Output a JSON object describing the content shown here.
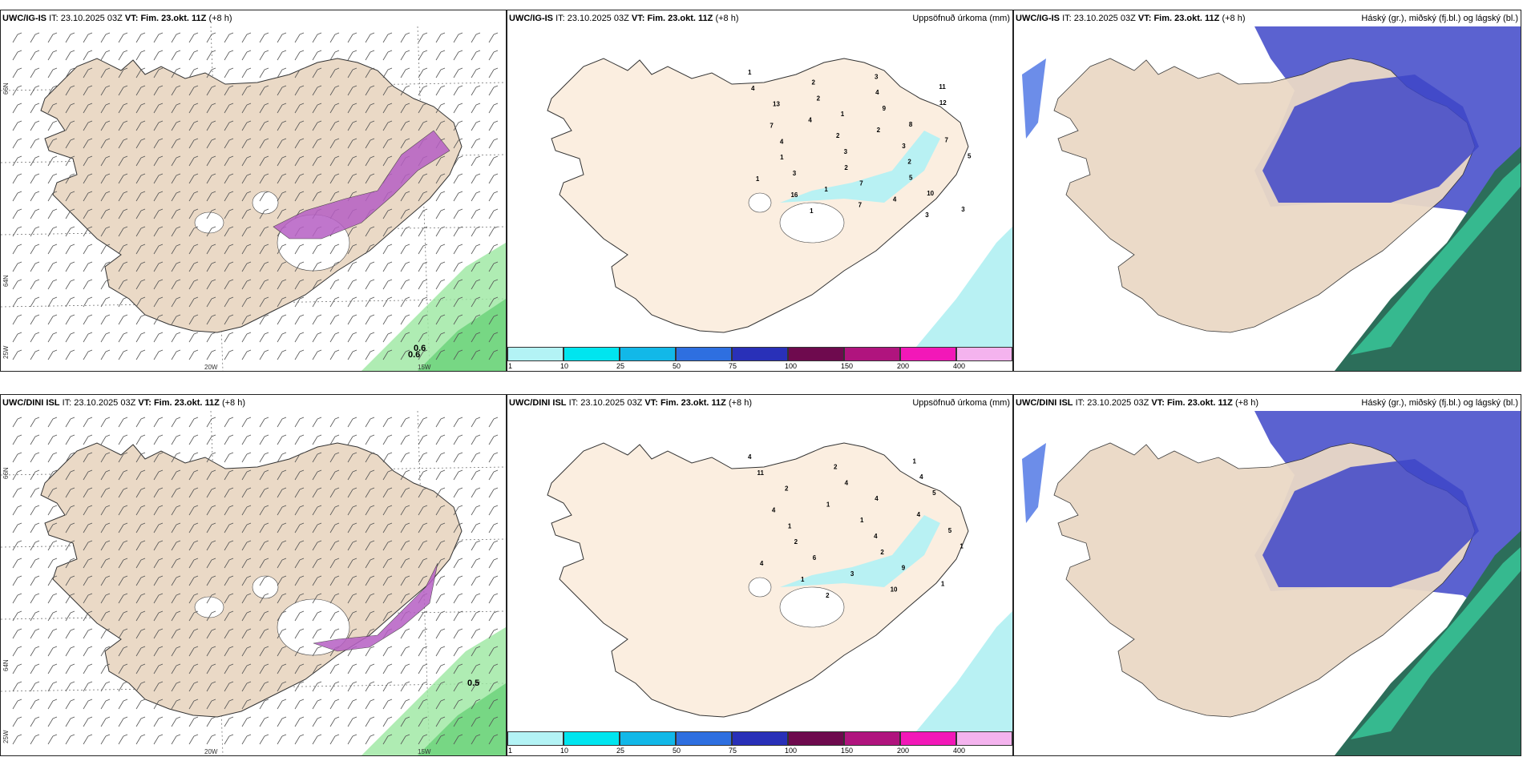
{
  "panels": [
    {
      "id": "t1",
      "model": "UWC/IG-IS",
      "it_label": "IT:",
      "it_value": "23.10.2025 03Z",
      "vt_label": "VT:",
      "vt_value": "Fim. 23.okt. 11Z",
      "lead": "(+8 h)",
      "right_title": ""
    },
    {
      "id": "t2",
      "model": "UWC/IG-IS",
      "it_label": "IT:",
      "it_value": "23.10.2025 03Z",
      "vt_label": "VT:",
      "vt_value": "Fim. 23.okt. 11Z",
      "lead": "(+8 h)",
      "right_title": "Uppsöfnuð úrkoma (mm)"
    },
    {
      "id": "t3",
      "model": "UWC/IG-IS",
      "it_label": "IT:",
      "it_value": "23.10.2025 03Z",
      "vt_label": "VT:",
      "vt_value": "Fim. 23.okt. 11Z",
      "lead": "(+8 h)",
      "right_title": "Háský (gr.), miðský (fj.bl.) og lágský (bl.)"
    },
    {
      "id": "b1",
      "model": "UWC/DINI ISL",
      "it_label": "IT:",
      "it_value": "23.10.2025 03Z",
      "vt_label": "VT:",
      "vt_value": "Fim. 23.okt. 11Z",
      "lead": "(+8 h)",
      "right_title": ""
    },
    {
      "id": "b2",
      "model": "UWC/DINI ISL",
      "it_label": "IT:",
      "it_value": "23.10.2025 03Z",
      "vt_label": "VT:",
      "vt_value": "Fim. 23.okt. 11Z",
      "lead": "(+8 h)",
      "right_title": "Uppsöfnuð úrkoma (mm)"
    },
    {
      "id": "b3",
      "model": "UWC/DINI ISL",
      "it_label": "IT:",
      "it_value": "23.10.2025 03Z",
      "vt_label": "VT:",
      "vt_value": "Fim. 23.okt. 11Z",
      "lead": "(+8 h)",
      "right_title": "Háský (gr.), miðský (fj.bl.) og lágský (bl.)"
    }
  ],
  "axes": {
    "lon_20w": "20W",
    "lon_15w": "15W",
    "lat_66n": "66N",
    "lat_64n": "64N",
    "lat_25w": "25W"
  },
  "colorbar": {
    "labels": [
      "1",
      "10",
      "25",
      "50",
      "75",
      "100",
      "150",
      "200",
      "400"
    ],
    "colors": [
      "#b3f3f5",
      "#00e5ef",
      "#12b8e8",
      "#2e6fe0",
      "#2930b8",
      "#6e0a4e",
      "#b0147e",
      "#f218b8",
      "#f4b3ee"
    ]
  },
  "wind_labels": {
    "top": "0.6",
    "top_b": "0.6",
    "bottom": "0.5"
  },
  "precip_top": [
    "1",
    "7",
    "1",
    "4",
    "4",
    "16",
    "13",
    "1",
    "1",
    "4",
    "3",
    "2",
    "2",
    "1",
    "2",
    "3",
    "7",
    "1",
    "2",
    "3",
    "2",
    "7",
    "4",
    "3",
    "4",
    "9",
    "2",
    "3",
    "8",
    "5",
    "11",
    "7",
    "10",
    "12",
    "5",
    "3"
  ],
  "precip_bottom": [
    "4",
    "4",
    "4",
    "11",
    "1",
    "1",
    "2",
    "2",
    "2",
    "1",
    "6",
    "2",
    "1",
    "3",
    "4",
    "4",
    "10",
    "4",
    "2",
    "1",
    "4",
    "9",
    "4",
    "5",
    "1",
    "5",
    "1"
  ],
  "colors": {
    "land": "#ead9c6",
    "land_precip": "#fbeee0",
    "snow": "#b65fc4",
    "cloud_high": "#3e46c8",
    "sea_green": "#2c6e5a",
    "light_cyan": "#b8f1f3"
  }
}
